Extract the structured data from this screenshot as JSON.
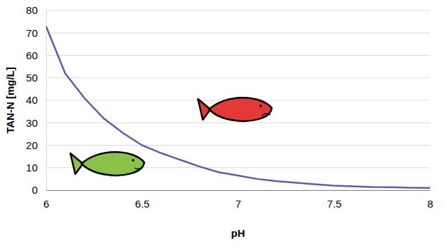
{
  "chart_data": {
    "type": "line",
    "x_label": "pH",
    "y_label": "TAN-N [mg/L]",
    "x": [
      6.0,
      6.1,
      6.2,
      6.3,
      6.4,
      6.5,
      6.6,
      6.7,
      6.8,
      6.9,
      7.0,
      7.1,
      7.2,
      7.3,
      7.4,
      7.5,
      7.6,
      7.7,
      7.8,
      7.9,
      8.0
    ],
    "values": [
      73,
      52,
      41,
      32,
      25.5,
      20,
      16.5,
      13.5,
      10.5,
      8,
      6.5,
      5,
      4,
      3.3,
      2.6,
      2,
      1.7,
      1.4,
      1.3,
      1.1,
      1
    ],
    "color": "#5b5ea6",
    "xlim": [
      6,
      8
    ],
    "xticks": [
      6,
      6.5,
      7,
      7.5,
      8
    ],
    "ylim": [
      0,
      80
    ],
    "yticks": [
      0,
      10,
      20,
      30,
      40,
      50,
      60,
      70,
      80
    ],
    "grid": true
  }
}
